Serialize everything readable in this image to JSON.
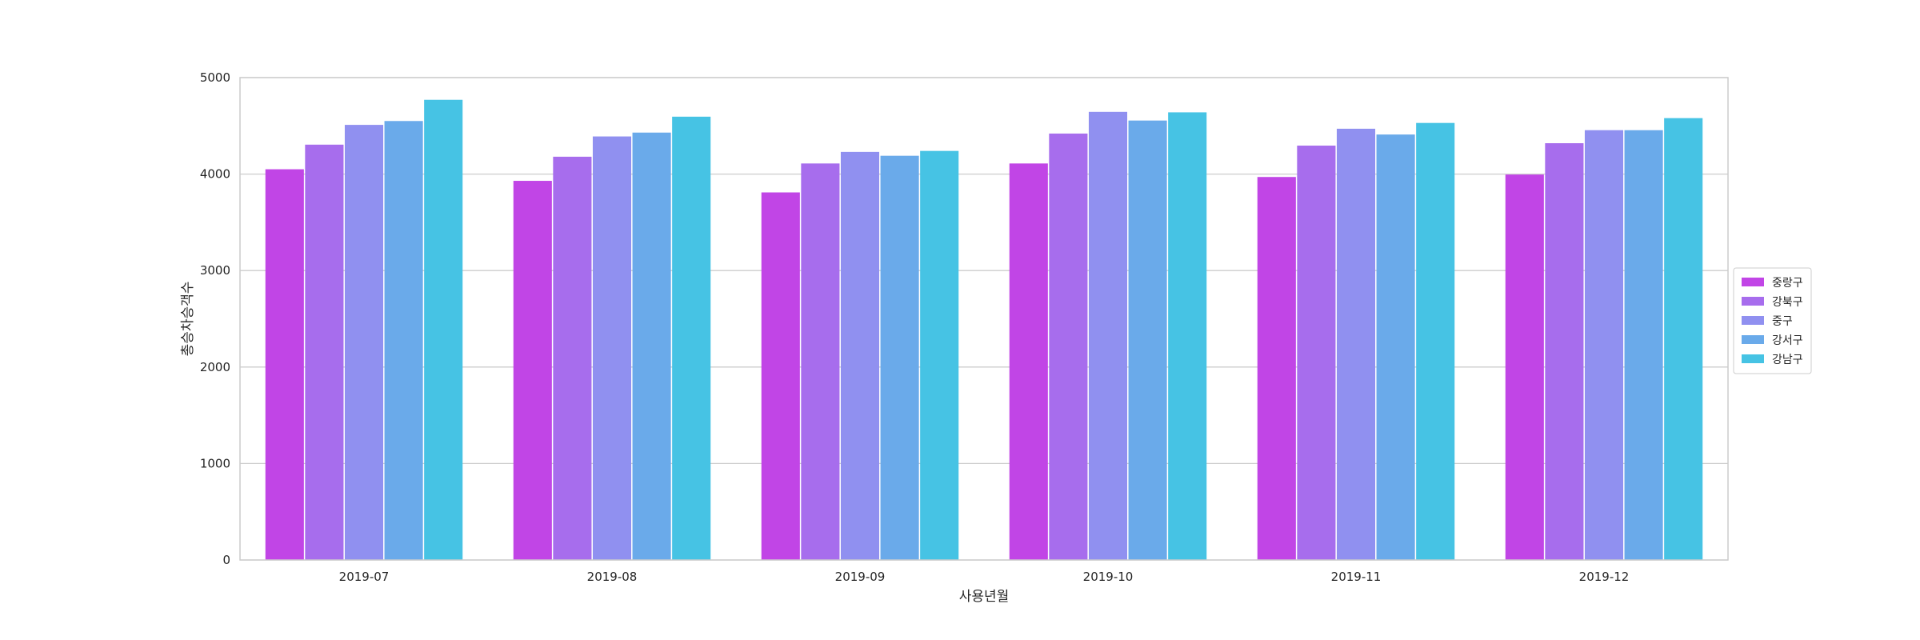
{
  "chart_data": {
    "type": "bar",
    "title": "",
    "xlabel": "사용년월",
    "ylabel": "총승차승객수",
    "ylim": [
      0,
      5000
    ],
    "yticks": [
      0,
      1000,
      2000,
      3000,
      4000,
      5000
    ],
    "grid": "horizontal",
    "legend_position": "right",
    "categories": [
      "2019-07",
      "2019-08",
      "2019-09",
      "2019-10",
      "2019-11",
      "2019-12"
    ],
    "series": [
      {
        "name": "중랑구",
        "color": "#c145e6",
        "values": [
          4050,
          3930,
          3810,
          4110,
          3970,
          3995
        ]
      },
      {
        "name": "강북구",
        "color": "#a76ded",
        "values": [
          4305,
          4180,
          4110,
          4420,
          4295,
          4320
        ]
      },
      {
        "name": "중구",
        "color": "#9090f0",
        "values": [
          4510,
          4390,
          4230,
          4645,
          4470,
          4455
        ]
      },
      {
        "name": "강서구",
        "color": "#6aaaea",
        "values": [
          4550,
          4430,
          4190,
          4555,
          4410,
          4455
        ]
      },
      {
        "name": "강남구",
        "color": "#46c3e4",
        "values": [
          4770,
          4595,
          4240,
          4640,
          4530,
          4580
        ]
      }
    ]
  }
}
